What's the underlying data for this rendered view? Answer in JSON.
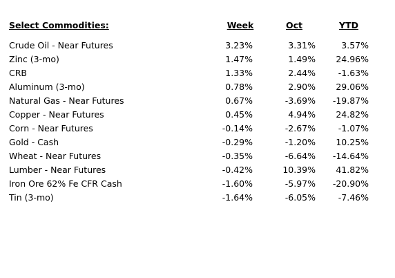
{
  "title": "Select Commodities:",
  "columns": [
    "Week",
    "Oct",
    "YTD"
  ],
  "rows": [
    {
      "name": "Crude Oil - Near Futures",
      "week": "3.23%",
      "oct": "3.31%",
      "ytd": "3.57%"
    },
    {
      "name": "Zinc (3-mo)",
      "week": "1.47%",
      "oct": "1.49%",
      "ytd": "24.96%"
    },
    {
      "name": "CRB",
      "week": "1.33%",
      "oct": "2.44%",
      "ytd": "-1.63%"
    },
    {
      "name": "Aluminum (3-mo)",
      "week": "0.78%",
      "oct": "2.90%",
      "ytd": "29.06%"
    },
    {
      "name": "Natural Gas - Near Futures",
      "week": "0.67%",
      "oct": "-3.69%",
      "ytd": "-19.87%"
    },
    {
      "name": "Copper - Near Futures",
      "week": "0.45%",
      "oct": "4.94%",
      "ytd": "24.82%"
    },
    {
      "name": "Corn - Near Futures",
      "week": "-0.14%",
      "oct": "-2.67%",
      "ytd": "-1.07%"
    },
    {
      "name": "Gold - Cash",
      "week": "-0.29%",
      "oct": "-1.20%",
      "ytd": "10.25%"
    },
    {
      "name": "Wheat - Near Futures",
      "week": "-0.35%",
      "oct": "-6.64%",
      "ytd": "-14.64%"
    },
    {
      "name": "Lumber - Near Futures",
      "week": "-0.42%",
      "oct": "10.39%",
      "ytd": "41.82%"
    },
    {
      "name": "Iron Ore 62% Fe CFR Cash",
      "week": "-1.60%",
      "oct": "-5.97%",
      "ytd": "-20.90%"
    },
    {
      "name": "Tin (3-mo)",
      "week": "-1.64%",
      "oct": "-6.05%",
      "ytd": "-7.46%"
    }
  ]
}
